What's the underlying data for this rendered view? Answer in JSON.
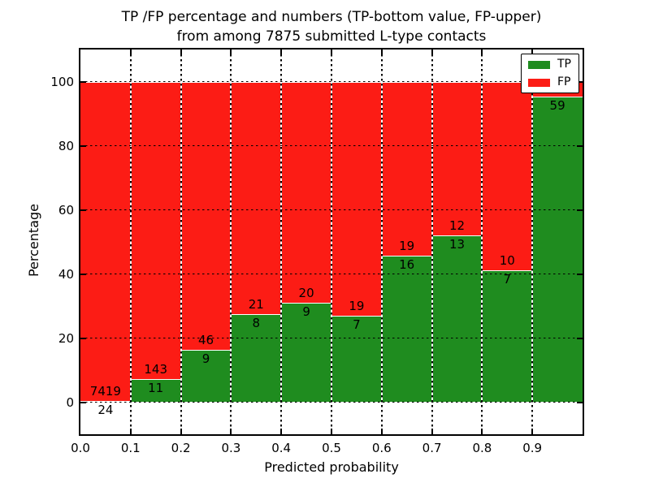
{
  "chart_data": {
    "type": "bar",
    "stacked": true,
    "title_lines": [
      "TP /FP percentage and numbers (TP-bottom value, FP-upper)",
      "from among 7875 submitted L-type contacts"
    ],
    "xlabel": "Predicted probability",
    "ylabel": "Percentage",
    "xlim": [
      0.0,
      1.0
    ],
    "ylim": [
      -10,
      110
    ],
    "x_tick_labels": [
      "0.0",
      "0.1",
      "0.2",
      "0.3",
      "0.4",
      "0.5",
      "0.6",
      "0.7",
      "0.8",
      "0.9"
    ],
    "y_tick_values": [
      0,
      20,
      40,
      60,
      80,
      100
    ],
    "grid": "dotted",
    "legend_position": "upper right",
    "legend": [
      {
        "name": "TP",
        "color": "#1f8c1f"
      },
      {
        "name": "FP",
        "color": "#fc1c15"
      }
    ],
    "bins": [
      {
        "range": [
          0.0,
          0.1
        ],
        "tp_count": 24,
        "fp_count": 7419,
        "tp_label": "24",
        "fp_label": "7419",
        "tp_pct": 0.32
      },
      {
        "range": [
          0.1,
          0.2
        ],
        "tp_count": 11,
        "fp_count": 143,
        "tp_label": "11",
        "fp_label": "143",
        "tp_pct": 7.14
      },
      {
        "range": [
          0.2,
          0.3
        ],
        "tp_count": 9,
        "fp_count": 46,
        "tp_label": "9",
        "fp_label": "46",
        "tp_pct": 16.36
      },
      {
        "range": [
          0.3,
          0.4
        ],
        "tp_count": 8,
        "fp_count": 21,
        "tp_label": "8",
        "fp_label": "21",
        "tp_pct": 27.59
      },
      {
        "range": [
          0.4,
          0.5
        ],
        "tp_count": 9,
        "fp_count": 20,
        "tp_label": "9",
        "fp_label": "20",
        "tp_pct": 31.03
      },
      {
        "range": [
          0.5,
          0.6
        ],
        "tp_count": 7,
        "fp_count": 19,
        "tp_label": "7",
        "fp_label": "19",
        "tp_pct": 26.92
      },
      {
        "range": [
          0.6,
          0.7
        ],
        "tp_count": 16,
        "fp_count": 19,
        "tp_label": "16",
        "fp_label": "19",
        "tp_pct": 45.71
      },
      {
        "range": [
          0.7,
          0.8
        ],
        "tp_count": 13,
        "fp_count": 12,
        "tp_label": "13",
        "fp_label": "12",
        "tp_pct": 52.0
      },
      {
        "range": [
          0.8,
          0.9
        ],
        "tp_count": 7,
        "fp_count": 10,
        "tp_label": "7",
        "fp_label": "10",
        "tp_pct": 41.18
      },
      {
        "range": [
          0.9,
          1.0
        ],
        "tp_count": 59,
        "fp_count": null,
        "tp_label": "59",
        "fp_label": null,
        "tp_pct": 95.2
      }
    ]
  }
}
